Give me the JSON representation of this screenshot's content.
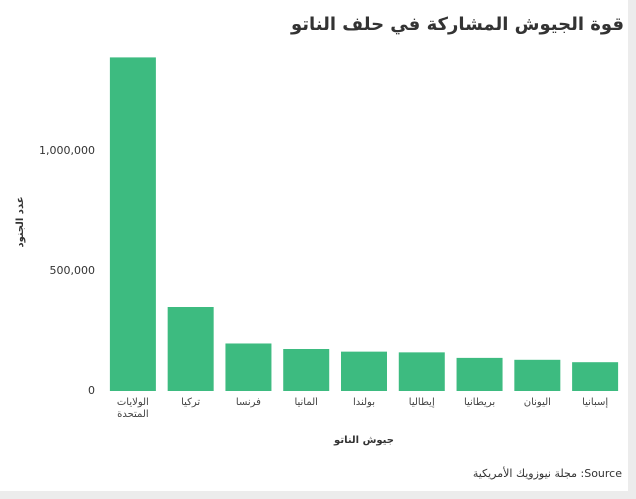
{
  "chart_data": {
    "type": "bar",
    "title": "قوة الجيوش المشاركة في حلف الناتو",
    "x_label": "جيوش الناتو",
    "y_label": "عدد الجنود",
    "source": "Source: مجلة نيوزويك الأمريكية",
    "categories": [
      "الولايات المتحدة",
      "تركيا",
      "فرنسا",
      "ألمانيا",
      "بولندا",
      "إيطاليا",
      "بريطانيا",
      "اليونان",
      "إسبانيا"
    ],
    "values": [
      1390000,
      350000,
      198000,
      175000,
      164000,
      161000,
      138000,
      130000,
      120000
    ],
    "color": "#3dbb80",
    "ylim": [
      0,
      1450000
    ],
    "yticks": [
      0,
      {
        "value": 500000,
        "label": "500,000"
      },
      {
        "value": 1000000,
        "label": "1,000,000"
      }
    ],
    "grid": false
  }
}
